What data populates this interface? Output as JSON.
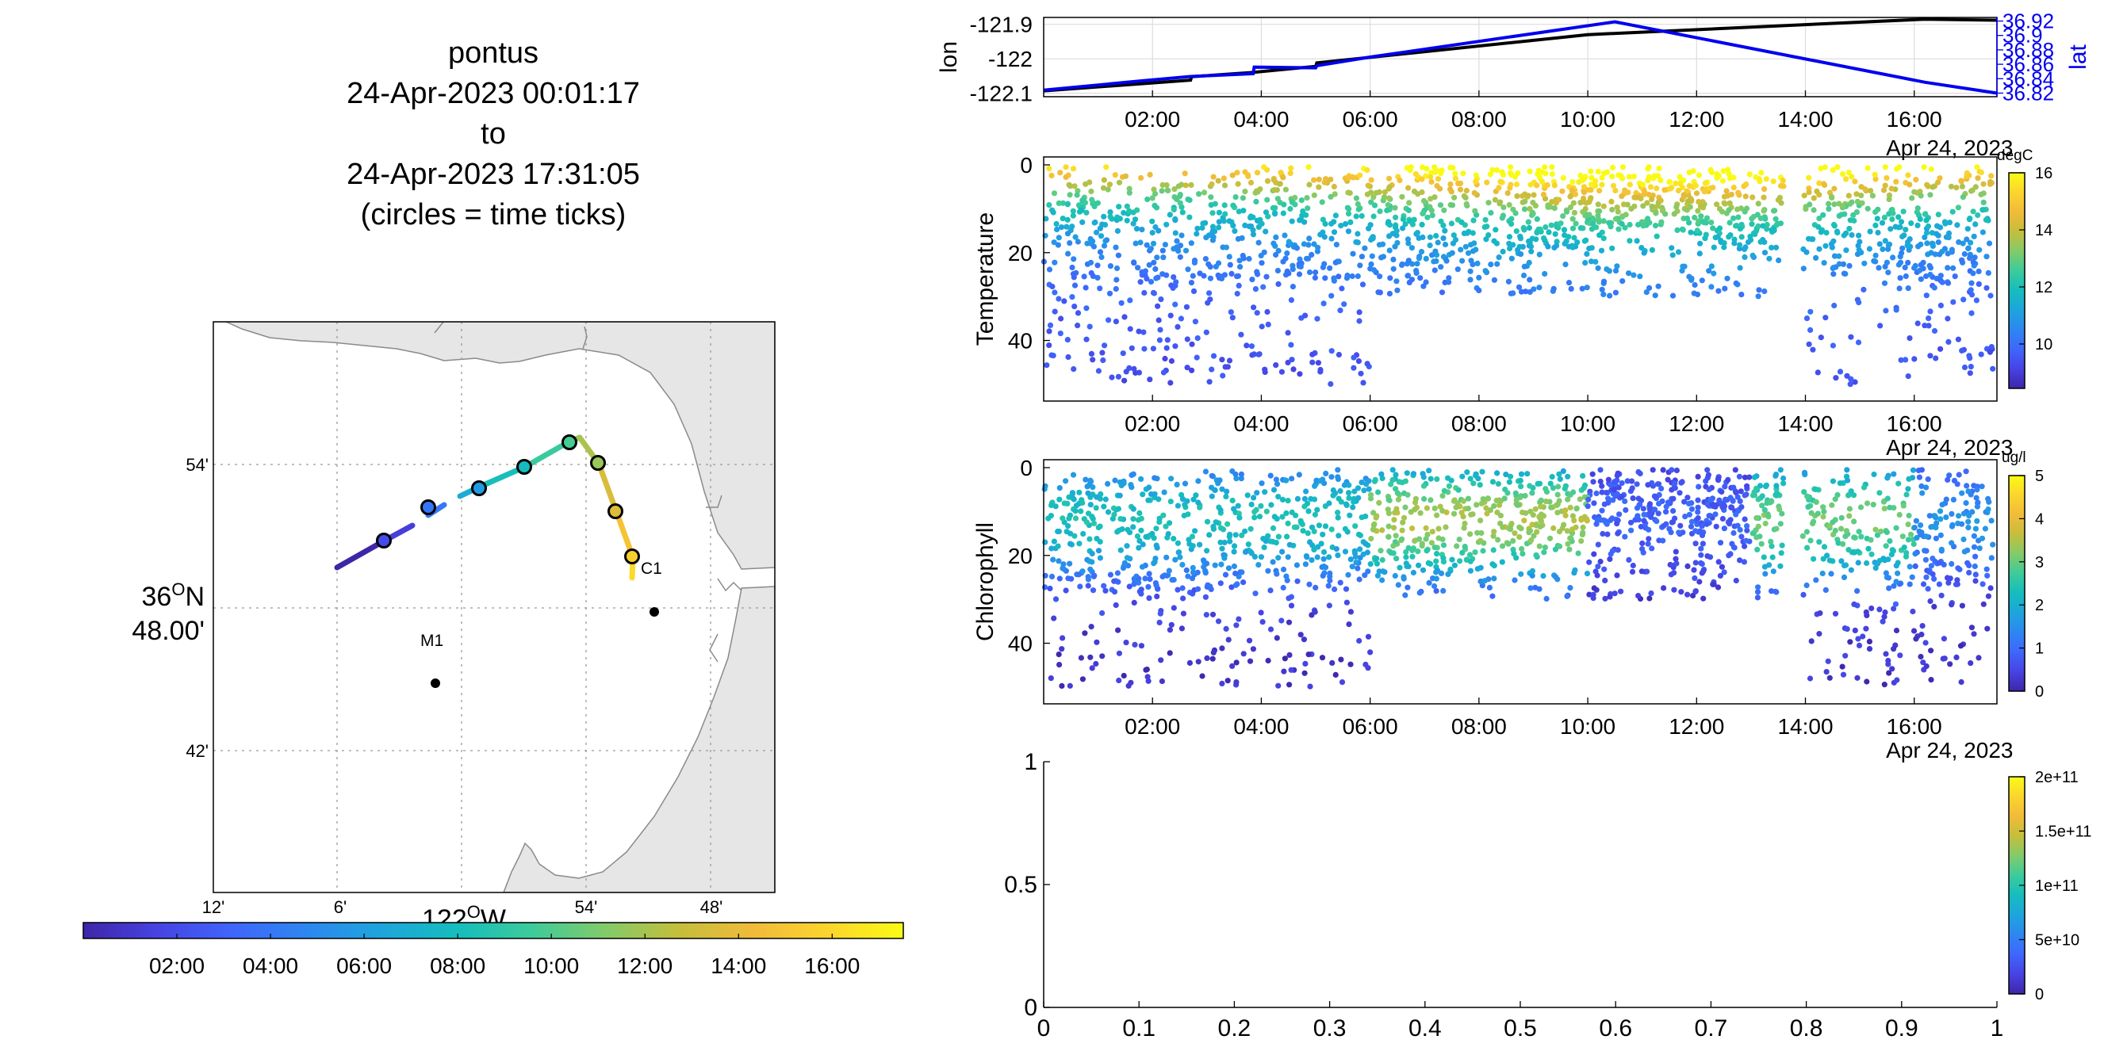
{
  "header": {
    "lines": [
      "pontus",
      "24-Apr-2023 00:01:17",
      "to",
      "24-Apr-2023 17:31:05",
      "(circles = time ticks)"
    ]
  },
  "map": {
    "lat_labels": [
      "54'",
      "42'"
    ],
    "lat_center": [
      "36",
      "O",
      "N",
      "48.00'"
    ],
    "lon_labels": [
      "12'",
      "6'",
      "54'",
      "48'"
    ],
    "lon_center": [
      "122",
      "O",
      "W"
    ],
    "stations": [
      {
        "name": "C1"
      },
      {
        "name": "M1"
      }
    ],
    "colorbar_ticks": [
      "02:00",
      "04:00",
      "06:00",
      "08:00",
      "10:00",
      "12:00",
      "14:00",
      "16:00"
    ]
  },
  "colors": {
    "parula": [
      "#3e26a8",
      "#4743e3",
      "#3f66fc",
      "#2d87f0",
      "#1ea5dc",
      "#15bdbd",
      "#3ccb9b",
      "#82cb6a",
      "#c5be3b",
      "#f1bb3a",
      "#fbd52d",
      "#f9fb15"
    ],
    "lon_line": "#000000",
    "lat_line": "#0000ee",
    "grid": "#d9d9d9",
    "land": "#e6e6e6"
  },
  "chart_data": [
    {
      "type": "line",
      "ylabel": "lon",
      "ylabel_right": "lat",
      "x_ticks": [
        "02:00",
        "04:00",
        "06:00",
        "08:00",
        "10:00",
        "12:00",
        "14:00",
        "16:00"
      ],
      "x_label_cut": "Apr 24, 2023",
      "yticks_left": [
        "-121.9",
        "-122",
        "-122.1"
      ],
      "yticks_right": [
        "36.92",
        "36.9",
        "36.88",
        "36.86",
        "36.84",
        "36.82"
      ],
      "xlim_hours": [
        0.0,
        17.52
      ],
      "series": [
        {
          "axis": "left",
          "x": [
            0.0,
            2.7,
            2.72,
            3.8,
            5.0,
            5.02,
            10.0,
            16.2,
            17.52
          ],
          "values": [
            -122.093,
            -122.062,
            -122.052,
            -122.04,
            -122.022,
            -122.012,
            -121.93,
            -121.885,
            -121.888
          ]
        },
        {
          "axis": "right",
          "x": [
            0.0,
            1.8,
            2.7,
            3.85,
            3.87,
            5.0,
            5.02,
            6.0,
            10.5,
            16.2,
            17.52
          ],
          "values": [
            36.824,
            36.837,
            36.843,
            36.847,
            36.856,
            36.855,
            36.858,
            36.87,
            36.919,
            36.835,
            36.82
          ]
        }
      ]
    },
    {
      "type": "scatter",
      "ylabel": "Temperature",
      "unit": "degC",
      "x_ticks": [
        "02:00",
        "04:00",
        "06:00",
        "08:00",
        "10:00",
        "12:00",
        "14:00",
        "16:00"
      ],
      "x_label_cut": "Apr 24, 2023",
      "y_ticks": [
        "0",
        "20",
        "40"
      ],
      "ylim": [
        0,
        52
      ],
      "colorbar_ticks": [
        "16",
        "14",
        "12",
        "10"
      ],
      "clim": [
        8.5,
        16
      ]
    },
    {
      "type": "scatter",
      "ylabel": "Chlorophyll",
      "unit": "ug/l",
      "x_ticks": [
        "02:00",
        "04:00",
        "06:00",
        "08:00",
        "10:00",
        "12:00",
        "14:00",
        "16:00"
      ],
      "x_label_cut": "Apr 24, 2023",
      "y_ticks": [
        "0",
        "20",
        "40"
      ],
      "ylim": [
        0,
        52
      ],
      "colorbar_ticks": [
        "5",
        "4",
        "3",
        "2",
        "1",
        "0"
      ],
      "clim": [
        0,
        5
      ]
    },
    {
      "type": "scatter",
      "x_ticks": [
        "0",
        "0.1",
        "0.2",
        "0.3",
        "0.4",
        "0.5",
        "0.6",
        "0.7",
        "0.8",
        "0.9",
        "1"
      ],
      "y_ticks": [
        "1",
        "0.5",
        "0"
      ],
      "xlim": [
        0,
        1
      ],
      "ylim": [
        0,
        1
      ],
      "colorbar_ticks": [
        "2e+11",
        "1.5e+11",
        "1e+11",
        "5e+10",
        "0"
      ]
    }
  ]
}
